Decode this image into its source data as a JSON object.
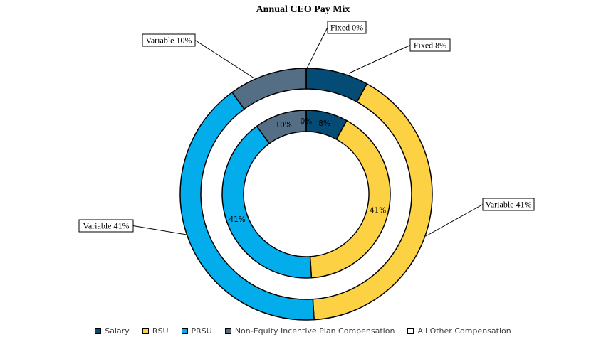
{
  "chart_data": {
    "type": "pie",
    "subtype": "double-donut",
    "title": "Annual CEO Pay Mix",
    "categories": [
      "Salary",
      "RSU",
      "PRSU",
      "Non-Equity Incentive Plan Compensation",
      "All Other Compensation"
    ],
    "colors": [
      "#044B76",
      "#FDD144",
      "#03ADEB",
      "#546F85",
      "#FFFFFF"
    ],
    "values": [
      8,
      41,
      41,
      10,
      0
    ],
    "inner_labels": [
      "8%",
      "41%",
      "41%",
      "10%",
      "0%"
    ],
    "outer_labels": [
      "Fixed 8%",
      "Variable 41%",
      "Variable 41%",
      "Variable 10%",
      "Fixed 0%"
    ],
    "legend_position": "bottom"
  }
}
